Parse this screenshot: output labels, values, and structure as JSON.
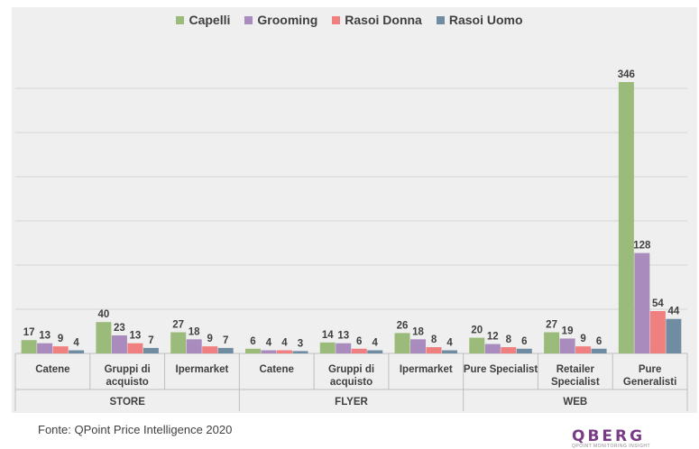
{
  "chart_data": {
    "type": "bar",
    "title": "",
    "xlabel": "",
    "ylabel": "",
    "ylim": [
      0,
      360
    ],
    "grid": true,
    "legend_position": "top-center",
    "groups": [
      {
        "label": "STORE",
        "categories": [
          "Catene",
          "Gruppi di acquisto",
          "Ipermarket"
        ]
      },
      {
        "label": "FLYER",
        "categories": [
          "Catene",
          "Gruppi di acquisto",
          "Ipermarket"
        ]
      },
      {
        "label": "WEB",
        "categories": [
          "Pure Specialist",
          "Retailer Specialist",
          "Pure Generalisti"
        ]
      }
    ],
    "category_lines": [
      [
        "Catene"
      ],
      [
        "Gruppi di",
        "acquisto"
      ],
      [
        "Ipermarket"
      ],
      [
        "Catene"
      ],
      [
        "Gruppi di",
        "acquisto"
      ],
      [
        "Ipermarket"
      ],
      [
        "Pure Specialist"
      ],
      [
        "Retailer",
        "Specialist"
      ],
      [
        "Pure",
        "Generalisti"
      ]
    ],
    "series": [
      {
        "name": "Capelli",
        "color": "#9bbb7a",
        "values": [
          17,
          40,
          27,
          6,
          14,
          26,
          20,
          27,
          346
        ]
      },
      {
        "name": "Grooming",
        "color": "#a98bbd",
        "values": [
          13,
          23,
          18,
          4,
          13,
          18,
          12,
          19,
          128
        ]
      },
      {
        "name": "Rasoi Donna",
        "color": "#f07f7f",
        "values": [
          9,
          13,
          9,
          4,
          6,
          8,
          8,
          9,
          54
        ]
      },
      {
        "name": "Rasoi Uomo",
        "color": "#6f8ca3",
        "values": [
          4,
          7,
          7,
          3,
          4,
          4,
          6,
          6,
          44
        ]
      }
    ]
  },
  "footer": {
    "source": "Fonte: QPoint Price Intelligence 2020",
    "logo_text": "QBERG",
    "logo_subtitle": "QPOINT MONITORING INSIGHT"
  }
}
